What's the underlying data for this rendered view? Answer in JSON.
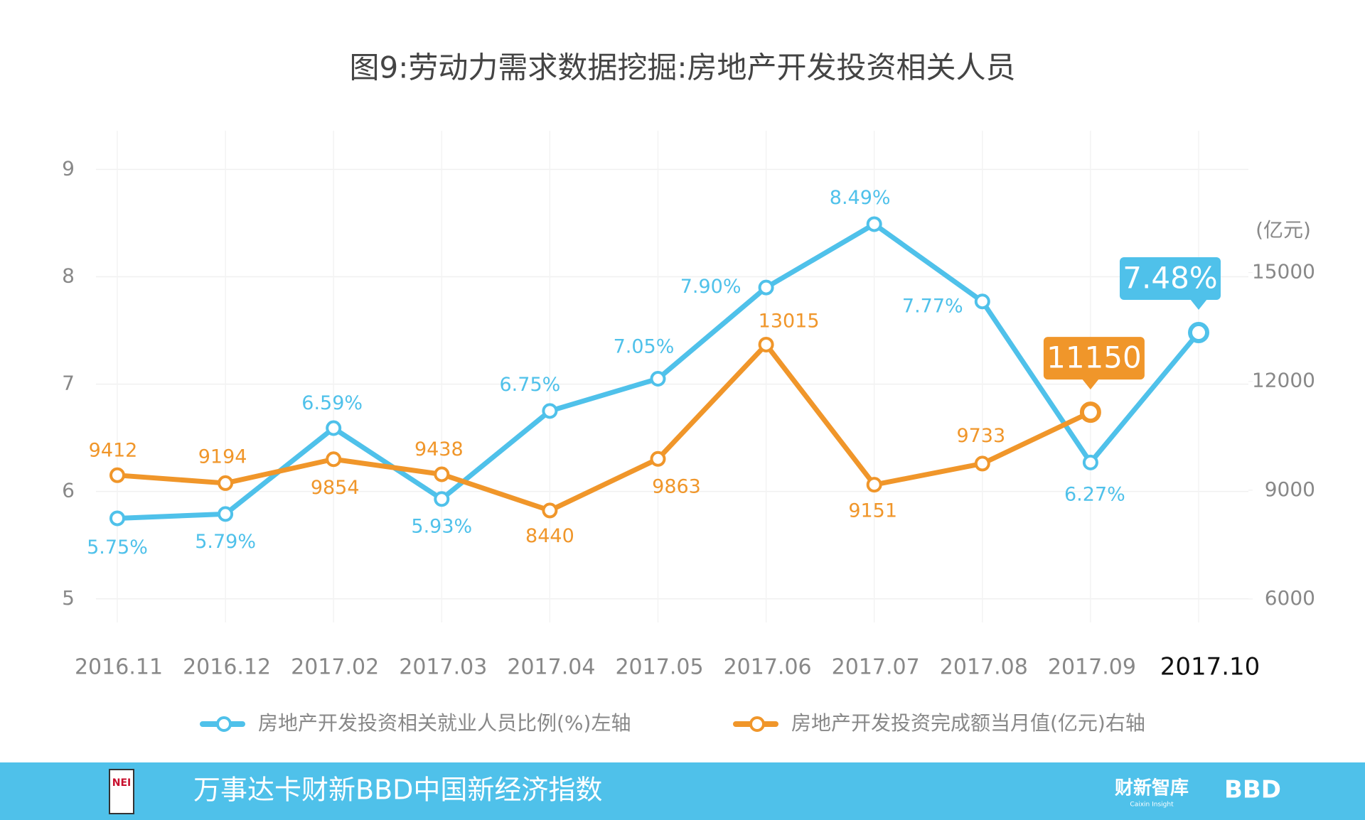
{
  "chart_data": {
    "type": "line",
    "title": "图9:劳动力需求数据挖掘:房地产开发投资相关人员",
    "categories": [
      "2016.11",
      "2016.12",
      "2017.02",
      "2017.03",
      "2017.04",
      "2017.05",
      "2017.06",
      "2017.07",
      "2017.08",
      "2017.09",
      "2017.10"
    ],
    "series": [
      {
        "name": "房地产开发投资相关就业人员比例(%)左轴",
        "color": "#4fc1ea",
        "values": [
          5.75,
          5.79,
          6.59,
          5.93,
          6.75,
          7.05,
          7.9,
          8.49,
          7.77,
          6.27,
          7.48
        ],
        "value_labels": [
          "5.75%",
          "5.79%",
          "6.59%",
          "5.93%",
          "6.75%",
          "7.05%",
          "7.90%",
          "8.49%",
          "7.77%",
          "6.27%",
          "7.48%"
        ]
      },
      {
        "name": "房地产开发投资完成额当月值(亿元)右轴",
        "color": "#f0962a",
        "axis": "y2",
        "values": [
          9412,
          9194,
          9854,
          9438,
          8440,
          9863,
          13015,
          9151,
          9733,
          11150,
          null
        ]
      }
    ],
    "ylim": [
      4.78,
      9.36
    ],
    "yticks": [
      5,
      6,
      7,
      8,
      9
    ],
    "y2lim": [
      5352,
      18912
    ],
    "y2ticks": [
      6000,
      9000,
      12000,
      15000
    ],
    "y2label": "(亿元)",
    "grid": true,
    "legend": "bottom"
  },
  "footer": {
    "title": "万事达卡财新BBD中国新经济指数",
    "logo": "NEI",
    "brand": "财新智库",
    "brand_sub": "Caixin Insight",
    "brand2": "BBD"
  }
}
